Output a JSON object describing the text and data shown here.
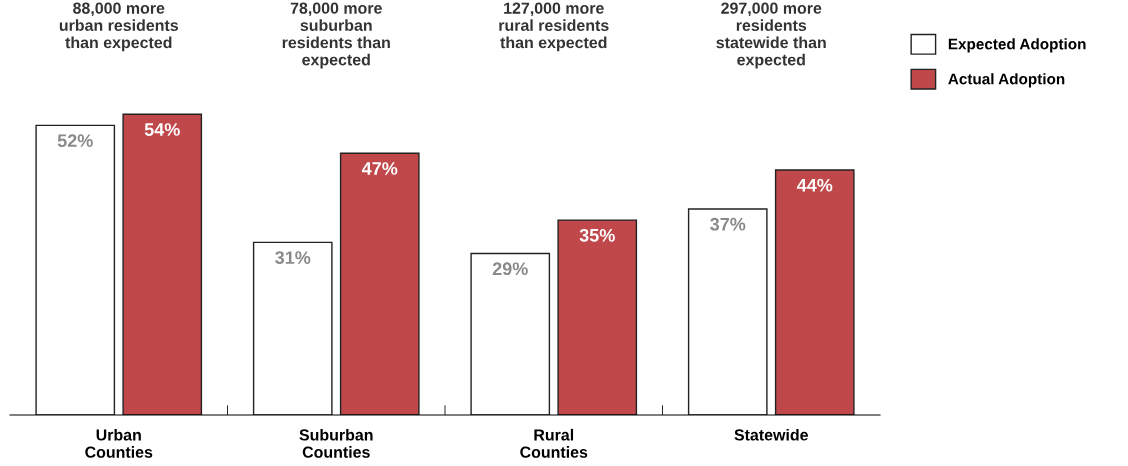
{
  "chart_data": {
    "type": "bar",
    "categories": [
      "Urban\nCounties",
      "Suburban\nCounties",
      "Rural\nCounties",
      "Statewide"
    ],
    "series": [
      {
        "name": "Expected Adoption",
        "color": "#ffffff",
        "values": [
          52,
          31,
          29,
          37
        ],
        "value_labels": [
          "52%",
          "31%",
          "29%",
          "37%"
        ]
      },
      {
        "name": "Actual Adoption",
        "color": "#c0484a",
        "values": [
          54,
          47,
          35,
          44
        ],
        "value_labels": [
          "54%",
          "47%",
          "35%",
          "44%"
        ]
      }
    ],
    "annotations": [
      "88,000 more\nurban residents\nthan expected",
      "78,000 more\nsuburban\nresidents than\nexpected",
      "127,000 more\nrural residents\nthan expected",
      "297,000 more\nresidents\nstatewide than\nexpected"
    ],
    "legend": "right",
    "grid": false
  }
}
